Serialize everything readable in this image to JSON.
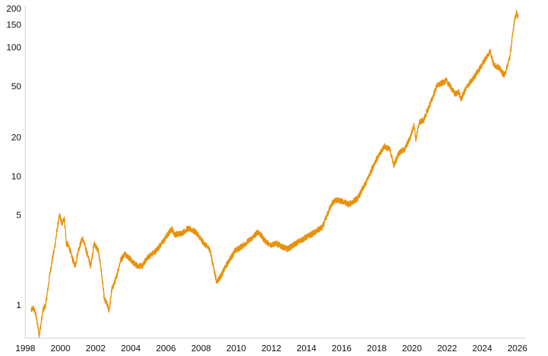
{
  "chart_data": {
    "type": "line",
    "title": "",
    "xlabel": "",
    "ylabel": "",
    "y_scale": "log",
    "xlim": [
      "1998-01-01",
      "2026-07-01"
    ],
    "ylim": [
      0.55,
      210
    ],
    "grid": false,
    "legend": "none",
    "colors": {
      "line": "#e8920b",
      "axis": "#cccccc",
      "text": "#111111"
    },
    "x_ticks": [
      "1998",
      "2000",
      "2002",
      "2004",
      "2006",
      "2008",
      "2010",
      "2012",
      "2014",
      "2016",
      "2018",
      "2020",
      "2022",
      "2024",
      "2026"
    ],
    "y_ticks": [
      {
        "value": 1,
        "label": "1"
      },
      {
        "value": 5,
        "label": "5"
      },
      {
        "value": 10,
        "label": "10"
      },
      {
        "value": 20,
        "label": "20"
      },
      {
        "value": 50,
        "label": "50"
      },
      {
        "value": 100,
        "label": "100"
      },
      {
        "value": 150,
        "label": "150"
      },
      {
        "value": 200,
        "label": "200"
      }
    ],
    "series": [
      {
        "x": [
          "1998-05-01",
          "1998-06-15",
          "1998-08-01",
          "1998-09-15",
          "1998-10-15",
          "1998-12-01",
          "1999-01-01",
          "1999-03-01",
          "1999-06-01",
          "1999-09-01",
          "1999-11-01",
          "1999-12-15",
          "2000-02-01",
          "2000-03-20",
          "2000-05-01",
          "2000-07-01",
          "2000-09-01",
          "2000-11-01",
          "2001-01-01",
          "2001-04-01",
          "2001-06-01",
          "2001-09-20",
          "2001-12-01",
          "2002-03-01",
          "2002-05-01",
          "2002-07-01",
          "2002-09-01",
          "2002-10-10",
          "2002-12-01",
          "2003-03-01",
          "2003-06-01",
          "2003-09-01",
          "2003-12-01",
          "2004-03-01",
          "2004-06-01",
          "2004-09-01",
          "2004-12-01",
          "2005-06-01",
          "2005-12-01",
          "2006-05-01",
          "2006-07-01",
          "2006-12-01",
          "2007-04-01",
          "2007-07-01",
          "2007-10-01",
          "2008-01-01",
          "2008-04-01",
          "2008-07-01",
          "2008-11-20",
          "2009-03-01",
          "2009-06-01",
          "2009-12-01",
          "2010-06-01",
          "2010-12-01",
          "2011-04-01",
          "2011-08-01",
          "2011-12-01",
          "2012-04-01",
          "2012-09-01",
          "2012-12-01",
          "2013-06-01",
          "2013-12-01",
          "2014-06-01",
          "2014-12-01",
          "2015-06-01",
          "2015-08-25",
          "2016-02-01",
          "2016-06-01",
          "2016-12-01",
          "2017-06-01",
          "2017-12-01",
          "2018-02-01",
          "2018-06-01",
          "2018-10-01",
          "2018-12-24",
          "2019-04-01",
          "2019-08-01",
          "2019-12-01",
          "2020-02-15",
          "2020-03-23",
          "2020-06-01",
          "2020-09-01",
          "2020-12-01",
          "2021-03-01",
          "2021-06-01",
          "2021-09-01",
          "2021-12-15",
          "2022-03-01",
          "2022-06-15",
          "2022-09-01",
          "2022-10-15",
          "2022-12-01",
          "2023-03-01",
          "2023-06-01",
          "2023-09-01",
          "2023-12-01",
          "2024-03-01",
          "2024-06-15",
          "2024-09-01",
          "2024-12-01",
          "2025-04-08",
          "2025-06-01",
          "2025-08-01",
          "2025-10-01",
          "2025-11-01",
          "2025-12-15",
          "2026-01-15"
        ],
        "y": [
          0.9,
          0.95,
          0.85,
          0.7,
          0.58,
          0.75,
          0.9,
          1.0,
          1.8,
          2.8,
          4.0,
          5.0,
          4.2,
          4.8,
          3.0,
          2.8,
          2.3,
          2.0,
          2.6,
          3.3,
          2.8,
          2.0,
          3.0,
          2.6,
          1.8,
          1.1,
          1.0,
          0.9,
          1.3,
          1.6,
          2.2,
          2.5,
          2.3,
          2.1,
          2.0,
          2.0,
          2.3,
          2.6,
          3.2,
          3.9,
          3.5,
          3.6,
          3.9,
          3.8,
          3.6,
          3.2,
          2.9,
          2.7,
          1.5,
          1.7,
          2.0,
          2.6,
          2.9,
          3.3,
          3.7,
          3.2,
          2.9,
          3.0,
          2.8,
          2.7,
          3.0,
          3.3,
          3.6,
          4.0,
          6.0,
          6.5,
          6.3,
          6.0,
          6.7,
          9.0,
          13.0,
          14.0,
          17.0,
          16.0,
          12.0,
          15.0,
          16.0,
          20.0,
          25.0,
          19.0,
          26.0,
          27.0,
          33.0,
          40.0,
          50.0,
          52.0,
          55.0,
          50.0,
          43.0,
          45.0,
          39.0,
          43.0,
          50.0,
          55.0,
          62.0,
          70.0,
          80.0,
          93.0,
          72.0,
          70.0,
          60.0,
          70.0,
          85.0,
          130.0,
          160.0,
          185.0,
          170.0
        ]
      }
    ]
  }
}
